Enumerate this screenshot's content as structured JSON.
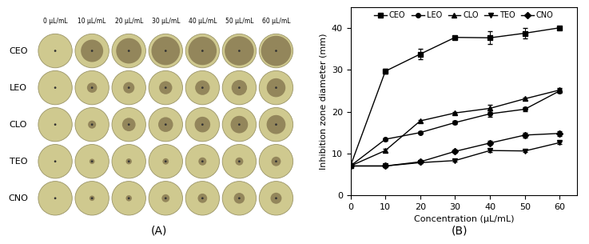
{
  "image_grid": {
    "caption": "(A)",
    "columns": [
      "0 μL/mL",
      "10 μL/mL",
      "20 μL/mL",
      "30 μL/mL",
      "40 μL/mL",
      "50 μL/mL",
      "60 μL/mL"
    ],
    "rows": [
      "CEO",
      "LEO",
      "CLO",
      "TEO",
      "CNO"
    ]
  },
  "chart_data": {
    "type": "line",
    "caption": "(B)",
    "x_label": "Concentration (μL/mL)",
    "y_label": "Inhibition zone diameter (mm)",
    "x": [
      0,
      10,
      20,
      30,
      40,
      50,
      60
    ],
    "series": [
      {
        "name": "CEO",
        "color": "#000000",
        "marker": "square",
        "values": [
          7,
          29.7,
          33.8,
          37.8,
          37.7,
          38.8,
          40.1
        ],
        "errors": [
          0,
          0.5,
          1.2,
          0.3,
          1.5,
          1.2,
          0.3
        ]
      },
      {
        "name": "LEO",
        "color": "#000000",
        "marker": "circle",
        "values": [
          7,
          13.4,
          15.0,
          17.4,
          19.5,
          20.6,
          25.0
        ],
        "errors": [
          0,
          0.3,
          0.3,
          0.4,
          0.8,
          0.5,
          0.4
        ]
      },
      {
        "name": "CLO",
        "color": "#000000",
        "marker": "triangle_up",
        "values": [
          7,
          10.7,
          17.8,
          19.7,
          20.8,
          23.1,
          25.2
        ],
        "errors": [
          0,
          0.4,
          0.3,
          0.3,
          0.8,
          0.3,
          0.4
        ]
      },
      {
        "name": "TEO",
        "color": "#000000",
        "marker": "triangle_down",
        "values": [
          7,
          7.0,
          7.8,
          8.3,
          10.7,
          10.6,
          12.6
        ],
        "errors": [
          0,
          0.2,
          0.2,
          0.3,
          0.4,
          0.3,
          0.3
        ]
      },
      {
        "name": "CNO",
        "color": "#000000",
        "marker": "diamond",
        "values": [
          7,
          7.0,
          8.0,
          10.5,
          12.5,
          14.4,
          14.8
        ],
        "errors": [
          0,
          0.2,
          0.3,
          0.4,
          0.5,
          0.6,
          0.6
        ]
      }
    ],
    "xlim": [
      0,
      65
    ],
    "xticks": [
      0,
      10,
      20,
      30,
      40,
      50,
      60
    ],
    "ylim": [
      0,
      45
    ],
    "yticks": [
      0,
      10,
      20,
      30,
      40
    ],
    "legend": "upper center",
    "grid": false
  }
}
